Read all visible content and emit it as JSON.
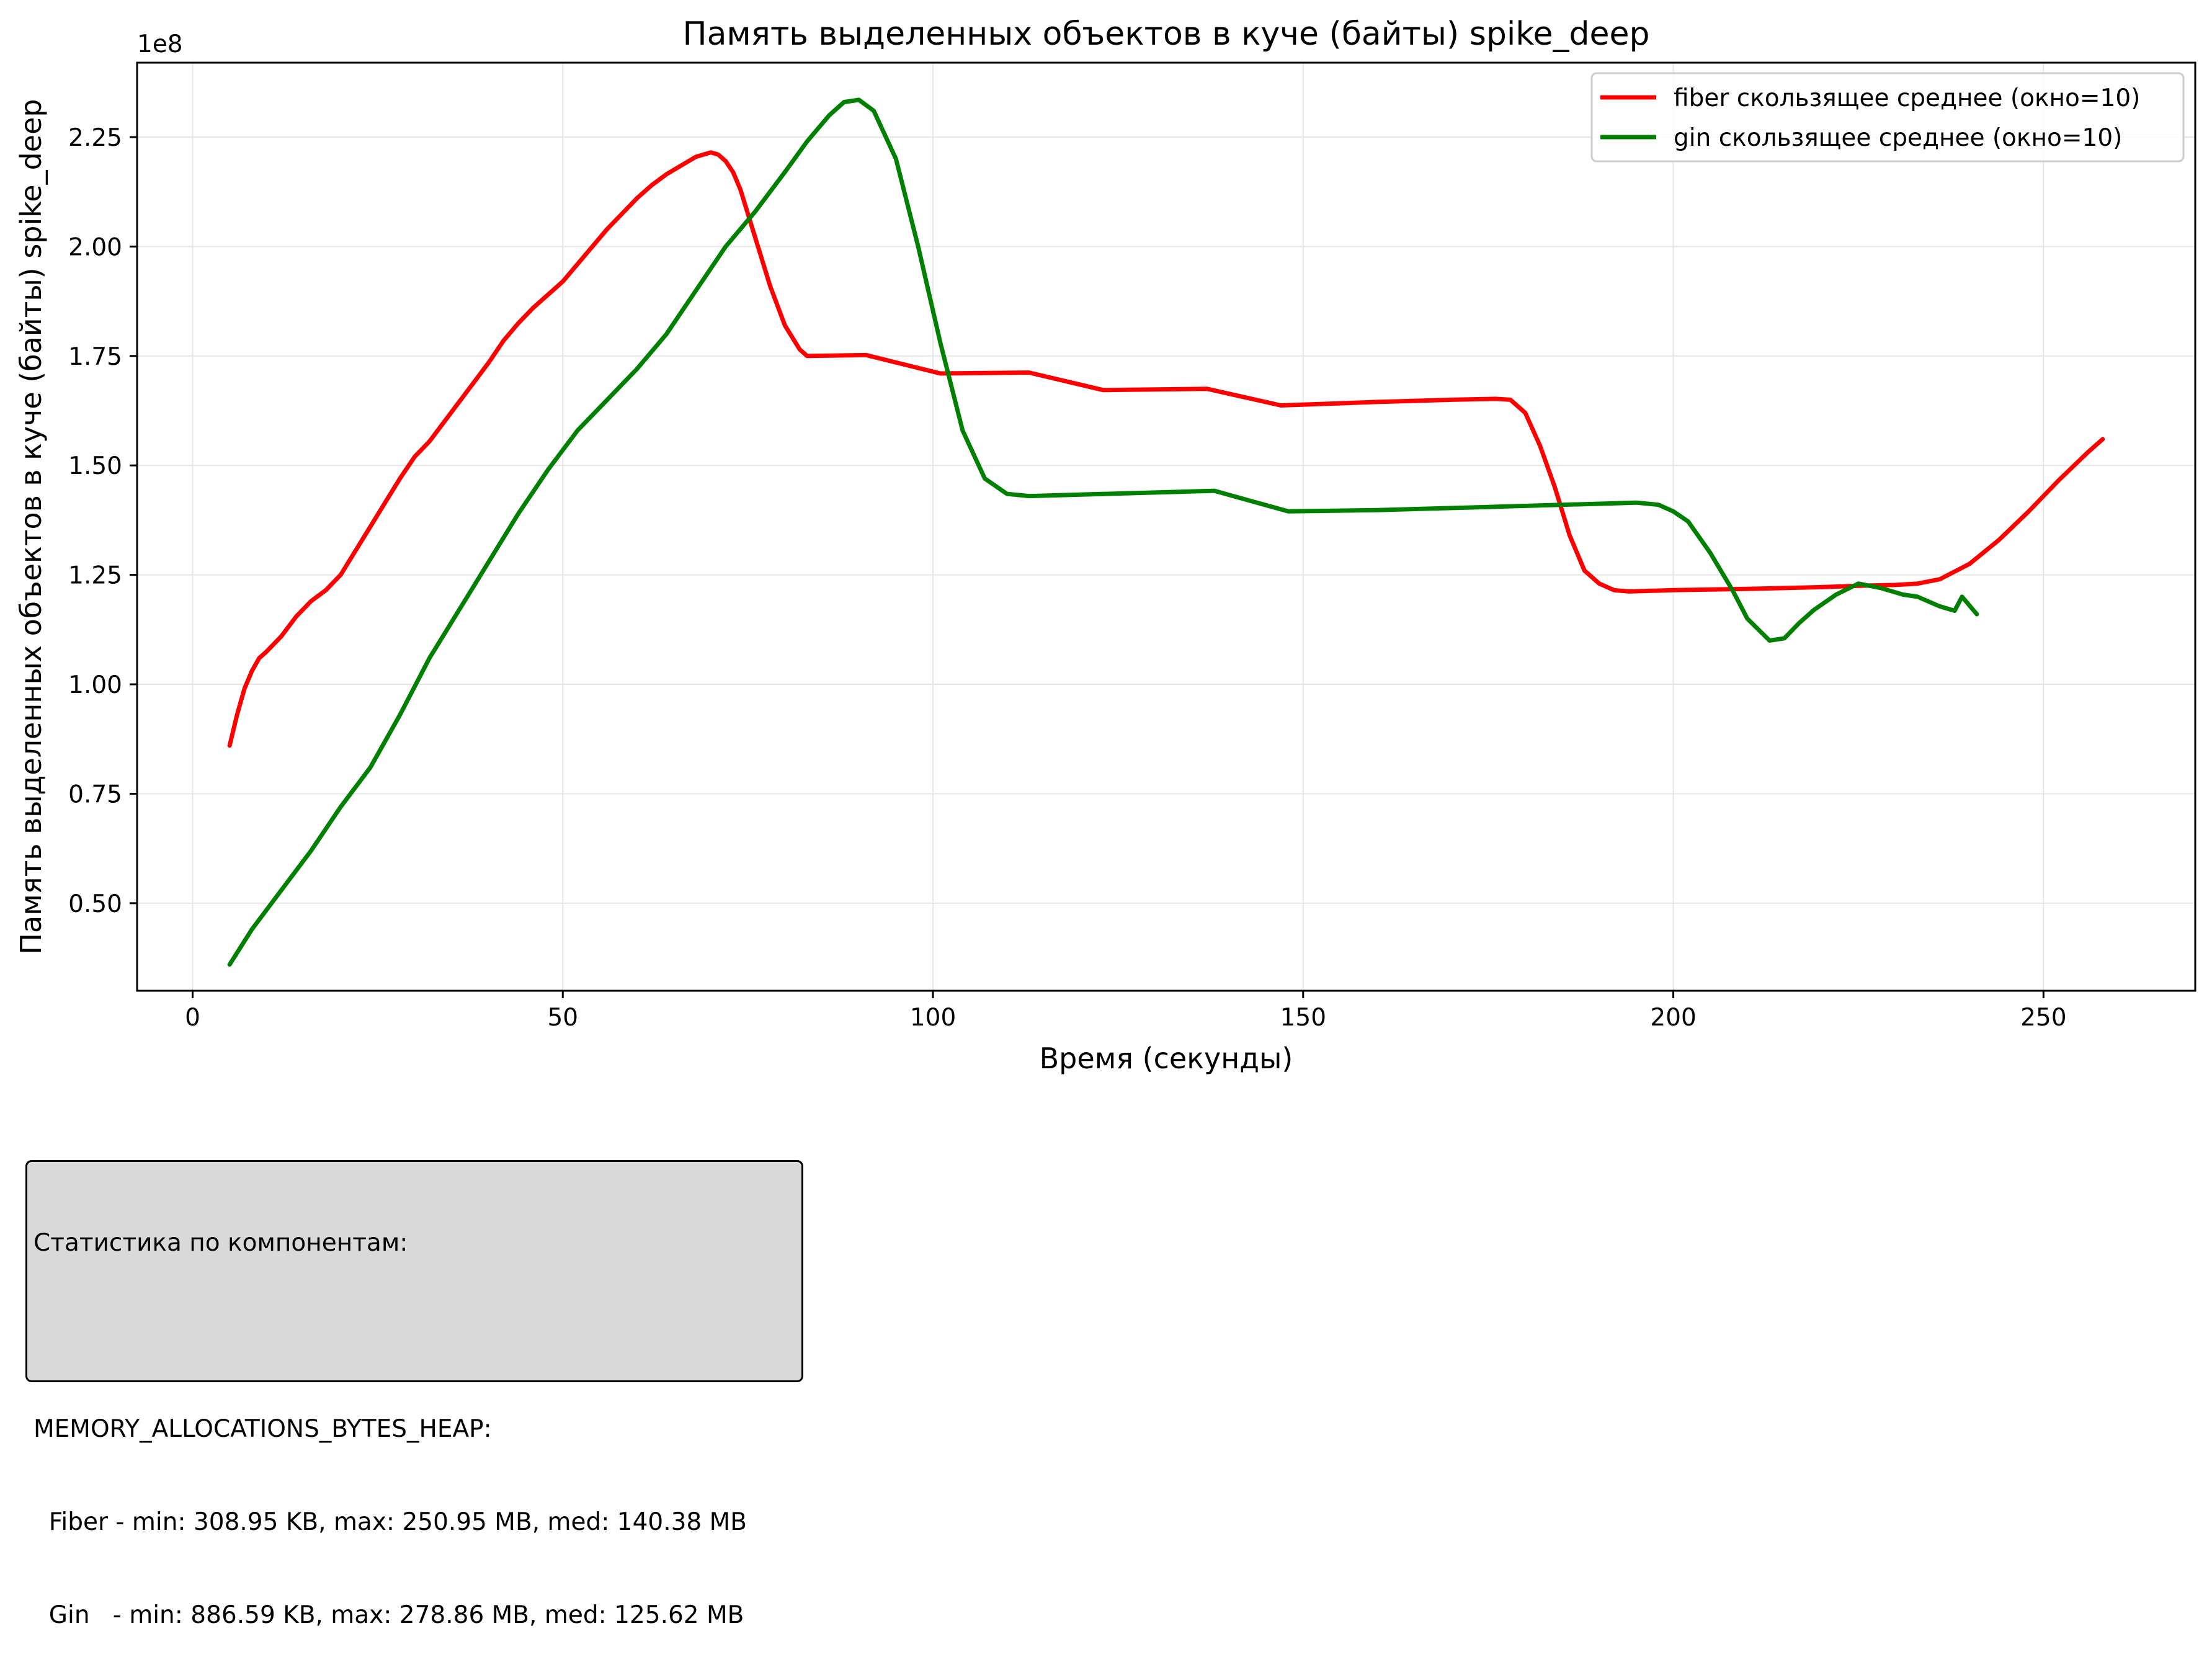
{
  "chart_data": {
    "type": "line",
    "title": "Память выделенных объектов в куче (байты) spike_deep",
    "xlabel": "Время (секунды)",
    "ylabel": "Память выделенных объектов в куче (байты) spike_deep",
    "y_offset_label": "1e8",
    "y_multiplier": 100000000,
    "xlim": [
      -7.5,
      270.5
    ],
    "ylim": [
      0.3,
      2.42
    ],
    "xticks": [
      0,
      50,
      100,
      150,
      200,
      250
    ],
    "xtick_labels": [
      "0",
      "50",
      "100",
      "150",
      "200",
      "250"
    ],
    "yticks": [
      0.5,
      0.75,
      1.0,
      1.25,
      1.5,
      1.75,
      2.0,
      2.25
    ],
    "ytick_labels": [
      "0.50",
      "0.75",
      "1.00",
      "1.25",
      "1.50",
      "1.75",
      "2.00",
      "2.25"
    ],
    "grid": true,
    "legend_position": "top-right",
    "series": [
      {
        "name": "fiber скользящее среднее (окно=10)",
        "color": "#ff0000",
        "x": [
          5,
          6,
          7,
          8,
          9,
          10,
          12,
          14,
          16,
          18,
          20,
          22,
          24,
          26,
          28,
          30,
          32,
          34,
          36,
          38,
          40,
          42,
          44,
          46,
          48,
          50,
          52,
          54,
          56,
          58,
          60,
          62,
          64,
          66,
          68,
          70,
          71,
          72,
          73,
          74,
          76,
          78,
          80,
          82,
          83,
          91,
          101,
          113,
          123,
          137,
          147,
          160,
          170,
          176,
          178,
          180,
          182,
          184,
          186,
          188,
          190,
          192,
          194,
          200,
          210,
          220,
          225,
          230,
          233,
          236,
          240,
          244,
          248,
          252,
          256,
          258
        ],
        "y": [
          0.86,
          0.93,
          0.99,
          1.03,
          1.06,
          1.075,
          1.11,
          1.155,
          1.19,
          1.215,
          1.25,
          1.305,
          1.36,
          1.415,
          1.47,
          1.52,
          1.555,
          1.6,
          1.645,
          1.69,
          1.735,
          1.785,
          1.825,
          1.86,
          1.89,
          1.92,
          1.96,
          2.0,
          2.04,
          2.075,
          2.11,
          2.14,
          2.165,
          2.185,
          2.205,
          2.215,
          2.21,
          2.195,
          2.17,
          2.13,
          2.02,
          1.91,
          1.82,
          1.765,
          1.75,
          1.752,
          1.71,
          1.712,
          1.672,
          1.675,
          1.637,
          1.645,
          1.65,
          1.652,
          1.65,
          1.62,
          1.545,
          1.45,
          1.34,
          1.26,
          1.23,
          1.215,
          1.212,
          1.215,
          1.218,
          1.222,
          1.225,
          1.227,
          1.23,
          1.24,
          1.275,
          1.33,
          1.395,
          1.465,
          1.53,
          1.56
        ]
      },
      {
        "name": "gin скользящее среднее (окно=10)",
        "color": "#008000",
        "x": [
          5,
          8,
          12,
          16,
          20,
          24,
          28,
          32,
          36,
          40,
          44,
          48,
          52,
          56,
          60,
          64,
          68,
          72,
          76,
          80,
          83,
          86,
          88,
          90,
          92,
          95,
          98,
          101,
          104,
          107,
          110,
          113,
          138,
          148,
          160,
          175,
          195,
          198,
          200,
          202,
          205,
          208,
          210,
          213,
          215,
          217,
          219,
          222,
          225,
          228,
          231,
          233,
          236,
          238,
          239,
          240,
          241
        ],
        "y": [
          0.36,
          0.44,
          0.53,
          0.62,
          0.72,
          0.81,
          0.93,
          1.06,
          1.17,
          1.28,
          1.39,
          1.49,
          1.58,
          1.65,
          1.72,
          1.8,
          1.9,
          2.0,
          2.08,
          2.17,
          2.24,
          2.3,
          2.33,
          2.335,
          2.31,
          2.2,
          2.0,
          1.78,
          1.58,
          1.47,
          1.435,
          1.43,
          1.442,
          1.395,
          1.398,
          1.405,
          1.415,
          1.41,
          1.395,
          1.372,
          1.3,
          1.215,
          1.15,
          1.1,
          1.105,
          1.14,
          1.17,
          1.205,
          1.23,
          1.22,
          1.205,
          1.2,
          1.178,
          1.168,
          1.2,
          1.18,
          1.16
        ]
      }
    ]
  },
  "stats": {
    "heading": "Статистика по компонентам:",
    "metric": "MEMORY_ALLOCATIONS_BYTES_HEAP:",
    "fiber_line": "  Fiber - min: 308.95 KB, max: 250.95 MB, med: 140.38 MB",
    "gin_line": "  Gin   - min: 886.59 KB, max: 278.86 MB, med: 125.62 MB"
  }
}
